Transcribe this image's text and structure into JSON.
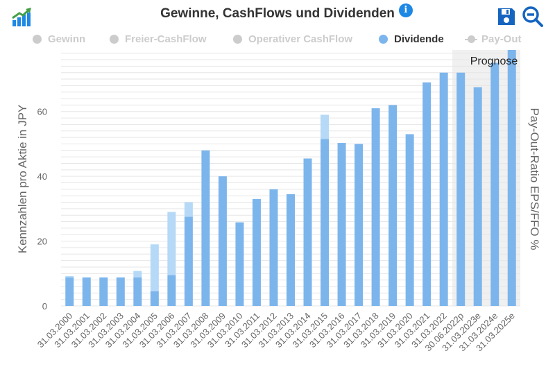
{
  "header": {
    "title": "Gewinne, CashFlows und Dividenden",
    "info_icon": "info-icon",
    "save_icon": "floppy-disk-icon",
    "zoom_icon": "zoom-out-icon",
    "logo_icon": "growth-chart-logo-icon"
  },
  "legend": [
    {
      "label": "Gewinn",
      "active": false,
      "color": "#cccccc",
      "marker": "dot"
    },
    {
      "label": "Freier-CashFlow",
      "active": false,
      "color": "#cccccc",
      "marker": "dot"
    },
    {
      "label": "Operativer CashFlow",
      "active": false,
      "color": "#cccccc",
      "marker": "dot"
    },
    {
      "label": "Dividende",
      "active": true,
      "color": "#7cb5ec",
      "marker": "dot"
    },
    {
      "label": "Pay-Out",
      "active": false,
      "color": "#cccccc",
      "marker": "line"
    }
  ],
  "colors": {
    "bar": "#7cb5ec",
    "bar_extra": "#b5d9f7",
    "forecast_band": "#f0f0f0",
    "grid": "#e6e6e6",
    "axis_text": "#666666"
  },
  "chart_data": {
    "type": "bar",
    "stacked": true,
    "categories": [
      "31.03.2000",
      "31.03.2001",
      "31.03.2002",
      "31.03.2003",
      "31.03.2004",
      "31.03.2005",
      "31.03.2006",
      "31.03.2007",
      "31.03.2008",
      "31.03.2009",
      "31.03.2010",
      "31.03.2011",
      "31.03.2012",
      "31.03.2013",
      "31.03.2014",
      "31.03.2015",
      "31.03.2016",
      "31.03.2017",
      "31.03.2018",
      "31.03.2019",
      "31.03.2020",
      "31.03.2021",
      "31.03.2022",
      "30.06.2022p",
      "31.03.2023e",
      "31.03.2024e",
      "31.03.2025e"
    ],
    "series": [
      {
        "name": "Dividende",
        "values": [
          8.8,
          8.8,
          8.8,
          8.8,
          8.8,
          4.5,
          9.5,
          27.5,
          48,
          40,
          25.8,
          33,
          36,
          34.5,
          45.5,
          51.5,
          50.3,
          50,
          61,
          62,
          53,
          69,
          72,
          72,
          67.5,
          75,
          79
        ]
      },
      {
        "name": "",
        "values": [
          0.4,
          0,
          0,
          0,
          2,
          14.5,
          19.5,
          4.5,
          0,
          0,
          0,
          0,
          0,
          0,
          0,
          7.5,
          0,
          0,
          0,
          0,
          0,
          0,
          0,
          0,
          0,
          0,
          0
        ]
      }
    ],
    "ylabel": "Kennzahlen pro Aktie in JPY",
    "y2label": "Pay-Out-Ratio EPS/FFO %",
    "yticks": [
      0,
      20,
      40,
      60
    ],
    "ylim": [
      0,
      79
    ],
    "forecast": {
      "label": "Prognose",
      "from_category": "30.06.2022p"
    },
    "grid": true
  }
}
